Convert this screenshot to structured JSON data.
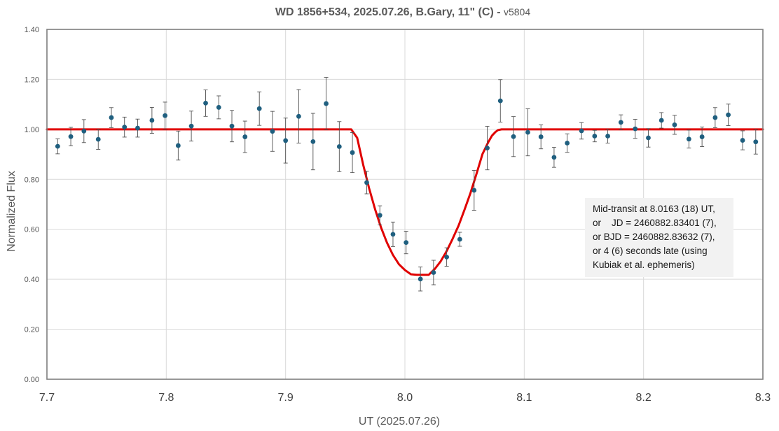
{
  "chart_data": {
    "type": "scatter",
    "title": "WD 1856+534, 2025.07.26, B.Gary, 11\" (C) - ",
    "title_version": "v5804",
    "xlabel": "UT (2025.07.26)",
    "ylabel": "Normalized Flux",
    "xlim": [
      7.7,
      8.3
    ],
    "ylim": [
      0.0,
      1.4
    ],
    "x_ticks": [
      "7.7",
      "7.8",
      "7.9",
      "8.0",
      "8.1",
      "8.2",
      "8.3"
    ],
    "y_ticks": [
      "0.00",
      "0.20",
      "0.40",
      "0.60",
      "0.80",
      "1.00",
      "1.20",
      "1.40"
    ],
    "grid": true,
    "colors": {
      "points": "#1f5f7f",
      "model": "#e00000",
      "errorbars": "#505050",
      "grid": "#d9d9d9",
      "annotation_bg": "#f2f2f2"
    },
    "series": [
      {
        "type": "scatter",
        "x": [
          7.709,
          7.72,
          7.731,
          7.743,
          7.754,
          7.765,
          7.776,
          7.788,
          7.799,
          7.81,
          7.821,
          7.833,
          7.844,
          7.855,
          7.866,
          7.878,
          7.889,
          7.9,
          7.911,
          7.923,
          7.934,
          7.945,
          7.956,
          7.968,
          7.979,
          7.99,
          8.001,
          8.013,
          8.024,
          8.035,
          8.046,
          8.058,
          8.069,
          8.08,
          8.091,
          8.103,
          8.114,
          8.125,
          8.136,
          8.148,
          8.159,
          8.17,
          8.181,
          8.193,
          8.204,
          8.215,
          8.226,
          8.238,
          8.249,
          8.26,
          8.271,
          8.283,
          8.294
        ],
        "y": [
          0.932,
          0.971,
          0.993,
          0.96,
          1.047,
          1.009,
          1.005,
          1.036,
          1.055,
          0.935,
          1.013,
          1.105,
          1.088,
          1.013,
          0.97,
          1.083,
          0.992,
          0.955,
          1.052,
          0.951,
          1.103,
          0.931,
          0.907,
          0.787,
          0.656,
          0.58,
          0.547,
          0.401,
          0.427,
          0.489,
          0.56,
          0.756,
          0.925,
          1.114,
          0.971,
          0.988,
          0.97,
          0.888,
          0.945,
          0.994,
          0.973,
          0.973,
          1.028,
          1.002,
          0.966,
          1.036,
          1.018,
          0.961,
          0.97,
          1.047,
          1.058,
          0.956,
          0.95
        ],
        "yerr": [
          0.03,
          0.037,
          0.046,
          0.04,
          0.04,
          0.04,
          0.036,
          0.052,
          0.054,
          0.058,
          0.06,
          0.053,
          0.046,
          0.063,
          0.063,
          0.067,
          0.08,
          0.09,
          0.107,
          0.113,
          0.105,
          0.1,
          0.08,
          0.045,
          0.038,
          0.049,
          0.045,
          0.048,
          0.049,
          0.037,
          0.028,
          0.08,
          0.087,
          0.085,
          0.08,
          0.094,
          0.048,
          0.04,
          0.037,
          0.033,
          0.023,
          0.028,
          0.03,
          0.038,
          0.037,
          0.031,
          0.038,
          0.036,
          0.039,
          0.04,
          0.043,
          0.038,
          0.049
        ]
      },
      {
        "type": "line",
        "x": [
          7.7,
          7.955,
          7.96,
          7.965,
          7.97,
          7.975,
          7.98,
          7.985,
          7.99,
          7.995,
          8.0,
          8.005,
          8.01,
          8.02,
          8.025,
          8.03,
          8.035,
          8.04,
          8.045,
          8.05,
          8.055,
          8.06,
          8.065,
          8.07,
          8.073,
          8.076,
          8.078,
          8.081,
          8.3
        ],
        "y": [
          1.0,
          1.0,
          0.966,
          0.859,
          0.764,
          0.68,
          0.607,
          0.546,
          0.497,
          0.46,
          0.437,
          0.42,
          0.418,
          0.418,
          0.441,
          0.472,
          0.513,
          0.562,
          0.615,
          0.679,
          0.746,
          0.822,
          0.901,
          0.95,
          0.975,
          0.99,
          0.997,
          1.0,
          1.0
        ]
      }
    ],
    "annotation": {
      "lines": [
        "Mid-transit at 8.0163 (18) UT,",
        "or    JD = 2460882.83401 (7),",
        "or BJD = 2460882.83632 (7),",
        "or 4 (6) seconds late (using",
        "Kubiak et al. ephemeris)"
      ]
    }
  }
}
